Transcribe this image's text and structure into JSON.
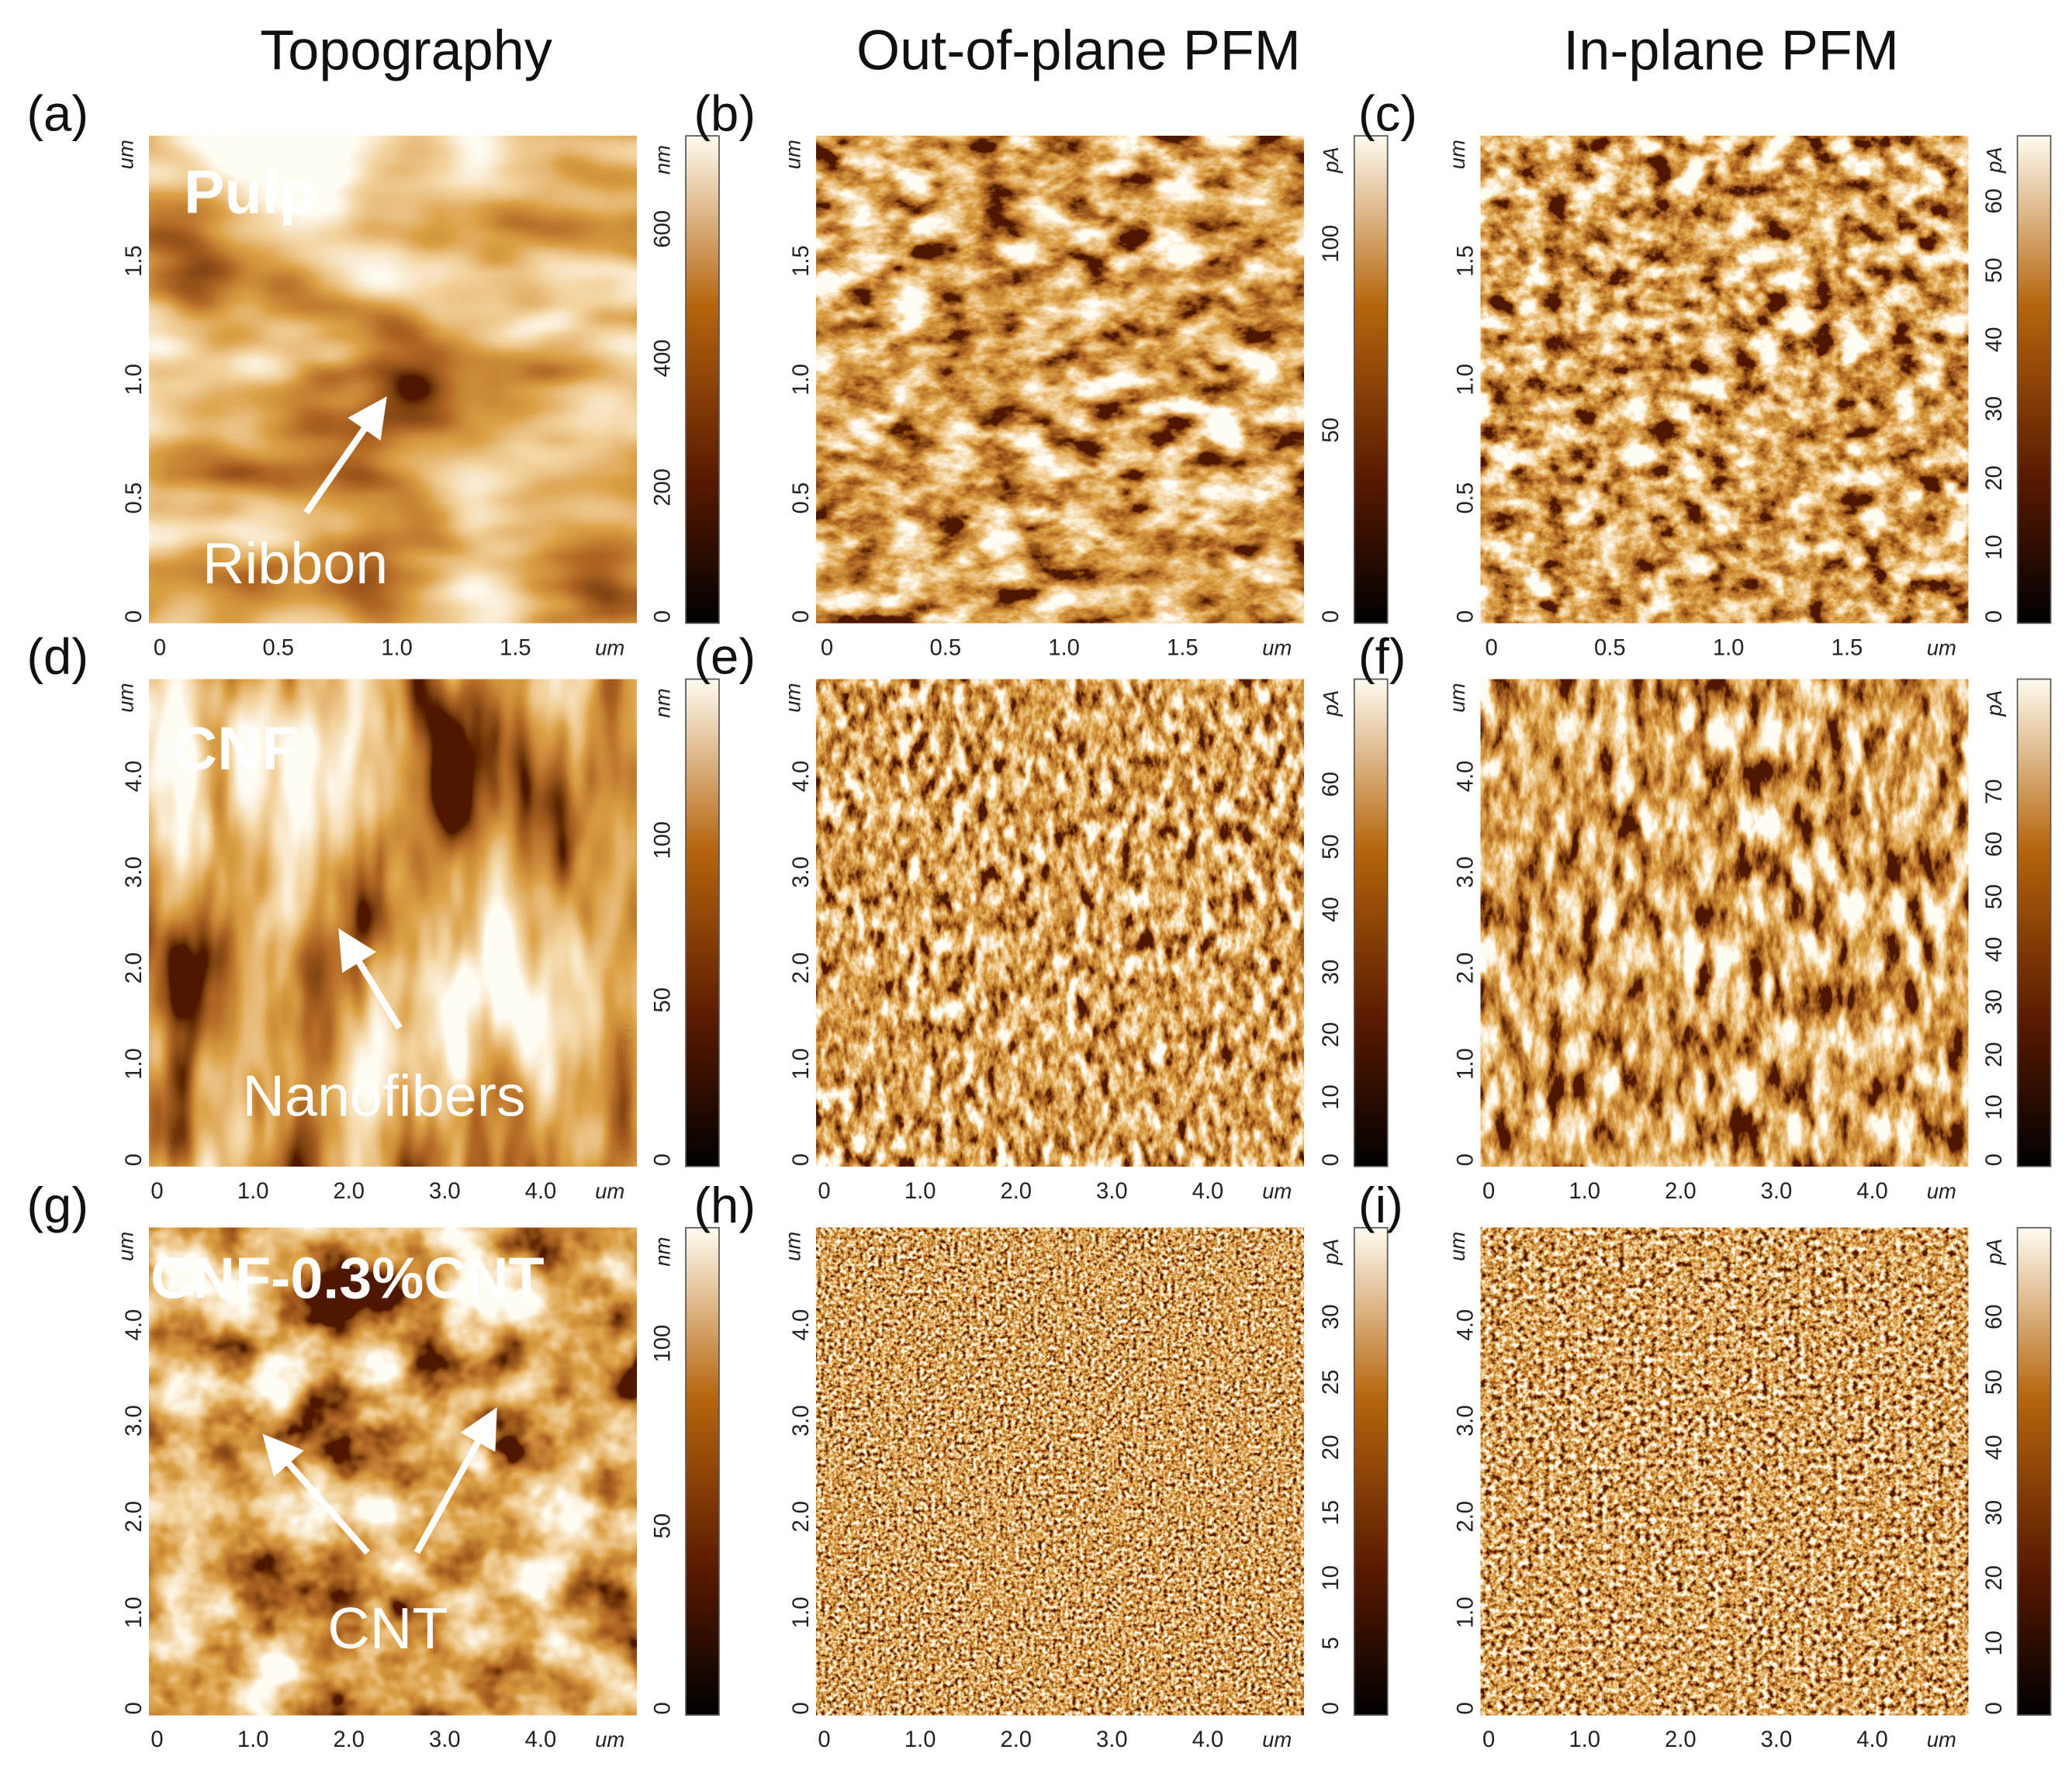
{
  "headers": [
    "Topography",
    "Out-of-plane PFM",
    "In-plane PFM"
  ],
  "panels": [
    {
      "letter": "(a)",
      "x_ticks": [
        "0",
        "0.5",
        "1.0",
        "1.5"
      ],
      "x_unit": "um",
      "y_ticks": [
        "0",
        "0.5",
        "1.0",
        "1.5"
      ],
      "y_unit": "um",
      "bar_unit": "nm",
      "bar_ticks": [
        "0",
        "200",
        "400",
        "600"
      ],
      "labels": [
        "Pulp",
        "Ribbon"
      ]
    },
    {
      "letter": "(b)",
      "x_ticks": [
        "0",
        "0.5",
        "1.0",
        "1.5"
      ],
      "x_unit": "um",
      "y_ticks": [
        "0",
        "0.5",
        "1.0",
        "1.5"
      ],
      "y_unit": "um",
      "bar_unit": "pA",
      "bar_ticks": [
        "0",
        "50",
        "100"
      ],
      "labels": []
    },
    {
      "letter": "(c)",
      "x_ticks": [
        "0",
        "0.5",
        "1.0",
        "1.5"
      ],
      "x_unit": "um",
      "y_ticks": [
        "0",
        "0.5",
        "1.0",
        "1.5"
      ],
      "y_unit": "um",
      "bar_unit": "pA",
      "bar_ticks": [
        "0",
        "10",
        "20",
        "30",
        "40",
        "50",
        "60"
      ],
      "labels": []
    },
    {
      "letter": "(d)",
      "x_ticks": [
        "0",
        "1.0",
        "2.0",
        "3.0",
        "4.0"
      ],
      "x_unit": "um",
      "y_ticks": [
        "0",
        "1.0",
        "2.0",
        "3.0",
        "4.0"
      ],
      "y_unit": "um",
      "bar_unit": "nm",
      "bar_ticks": [
        "0",
        "50",
        "100"
      ],
      "labels": [
        "CNF",
        "Nanofibers"
      ]
    },
    {
      "letter": "(e)",
      "x_ticks": [
        "0",
        "1.0",
        "2.0",
        "3.0",
        "4.0"
      ],
      "x_unit": "um",
      "y_ticks": [
        "0",
        "1.0",
        "2.0",
        "3.0",
        "4.0"
      ],
      "y_unit": "um",
      "bar_unit": "pA",
      "bar_ticks": [
        "0",
        "10",
        "20",
        "30",
        "40",
        "50",
        "60"
      ],
      "labels": []
    },
    {
      "letter": "(f)",
      "x_ticks": [
        "0",
        "1.0",
        "2.0",
        "3.0",
        "4.0"
      ],
      "x_unit": "um",
      "y_ticks": [
        "0",
        "1.0",
        "2.0",
        "3.0",
        "4.0"
      ],
      "y_unit": "um",
      "bar_unit": "pA",
      "bar_ticks": [
        "0",
        "10",
        "20",
        "30",
        "40",
        "50",
        "60",
        "70"
      ],
      "labels": []
    },
    {
      "letter": "(g)",
      "x_ticks": [
        "0",
        "1.0",
        "2.0",
        "3.0",
        "4.0"
      ],
      "x_unit": "um",
      "y_ticks": [
        "0",
        "1.0",
        "2.0",
        "3.0",
        "4.0"
      ],
      "y_unit": "um",
      "bar_unit": "nm",
      "bar_ticks": [
        "0",
        "50",
        "100"
      ],
      "labels": [
        "CNF-0.3%CNT",
        "CNT"
      ]
    },
    {
      "letter": "(h)",
      "x_ticks": [
        "0",
        "1.0",
        "2.0",
        "3.0",
        "4.0"
      ],
      "x_unit": "um",
      "y_ticks": [
        "0",
        "1.0",
        "2.0",
        "3.0",
        "4.0"
      ],
      "y_unit": "um",
      "bar_unit": "pA",
      "bar_ticks": [
        "0",
        "5",
        "10",
        "15",
        "20",
        "25",
        "30"
      ],
      "labels": []
    },
    {
      "letter": "(i)",
      "x_ticks": [
        "0",
        "1.0",
        "2.0",
        "3.0",
        "4.0"
      ],
      "x_unit": "um",
      "y_ticks": [
        "0",
        "1.0",
        "2.0",
        "3.0",
        "4.0"
      ],
      "y_unit": "um",
      "bar_unit": "pA",
      "bar_ticks": [
        "0",
        "10",
        "20",
        "30",
        "40",
        "50",
        "60"
      ],
      "labels": []
    }
  ]
}
